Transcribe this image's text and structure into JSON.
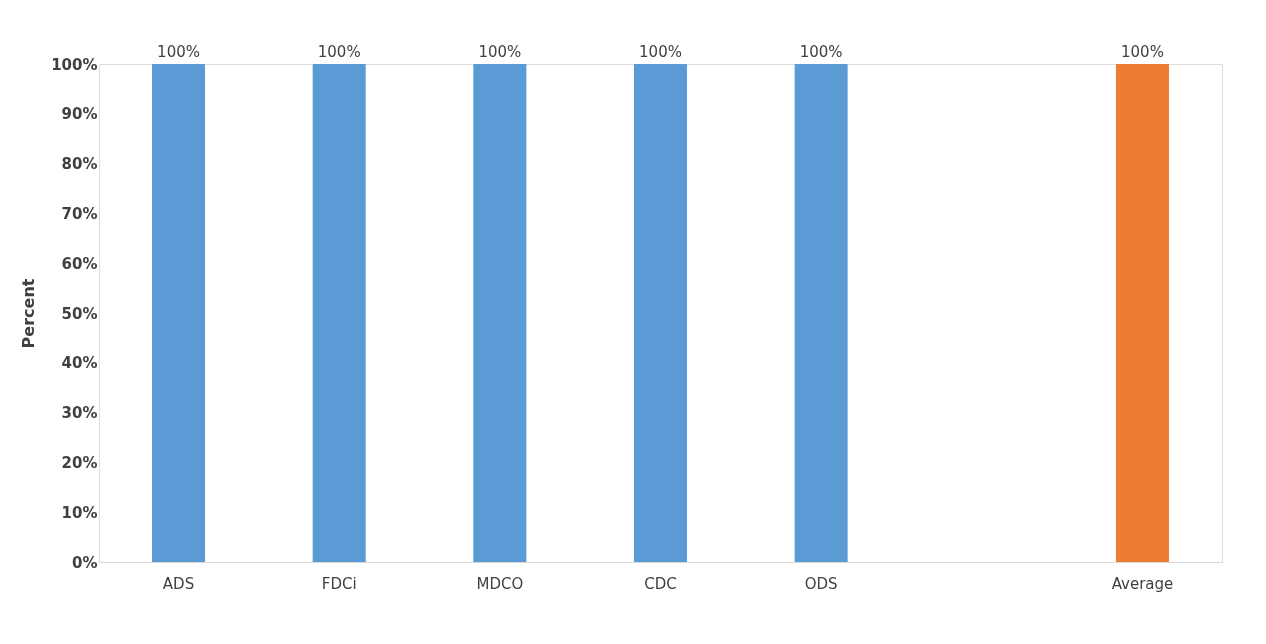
{
  "chart_data": {
    "type": "bar",
    "ylabel": "Percent",
    "categories": [
      "ADS",
      "FDCi",
      "MDCO",
      "CDC",
      "ODS",
      null,
      "Average"
    ],
    "values": [
      100,
      100,
      100,
      100,
      100,
      null,
      100
    ],
    "colors": [
      "#5b9bd5",
      "#5b9bd5",
      "#5b9bd5",
      "#5b9bd5",
      "#5b9bd5",
      "#5b9bd5",
      "#ed7d31"
    ],
    "value_labels": [
      "100%",
      "100%",
      "100%",
      "100%",
      "100%",
      null,
      "100%"
    ],
    "ylim": [
      0,
      100
    ],
    "yticks": [
      {
        "value": 0,
        "label": "0%"
      },
      {
        "value": 10,
        "label": "10%"
      },
      {
        "value": 20,
        "label": "20%"
      },
      {
        "value": 30,
        "label": "30%"
      },
      {
        "value": 40,
        "label": "40%"
      },
      {
        "value": 50,
        "label": "50%"
      },
      {
        "value": 60,
        "label": "60%"
      },
      {
        "value": 70,
        "label": "70%"
      },
      {
        "value": 80,
        "label": "80%"
      },
      {
        "value": 90,
        "label": "90%"
      },
      {
        "value": 100,
        "label": "100%"
      }
    ],
    "grid": false,
    "legend": false
  }
}
